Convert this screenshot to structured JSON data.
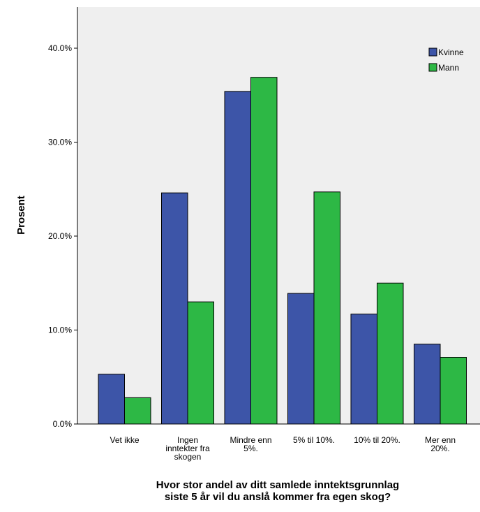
{
  "chart_data": {
    "type": "bar",
    "title": "",
    "xlabel": [
      "Hvor stor andel av ditt samlede inntektsgrunnlag",
      "siste 5 år vil du anslå kommer fra egen skog?"
    ],
    "ylabel": "Prosent",
    "ylim": [
      0,
      45
    ],
    "yticks": [
      0,
      10,
      20,
      30,
      40
    ],
    "ytick_labels": [
      "0.0%",
      "10.0%",
      "20.0%",
      "30.0%",
      "40.0%"
    ],
    "categories": [
      [
        "Vet ikke"
      ],
      [
        "Ingen",
        "inntekter fra",
        "skogen"
      ],
      [
        "Mindre enn",
        "5%."
      ],
      [
        "5% til 10%."
      ],
      [
        "10% til 20%."
      ],
      [
        "Mer enn",
        "20%."
      ]
    ],
    "series": [
      {
        "name": "Kvinne",
        "color": "#3d55a8",
        "values": [
          5.3,
          24.6,
          35.4,
          13.9,
          11.7,
          8.5
        ]
      },
      {
        "name": "Mann",
        "color": "#2db845",
        "values": [
          2.8,
          13.0,
          36.9,
          24.7,
          15.0,
          7.1
        ]
      }
    ],
    "legend_position": "top-right",
    "grid": false,
    "background": "#efefef"
  }
}
